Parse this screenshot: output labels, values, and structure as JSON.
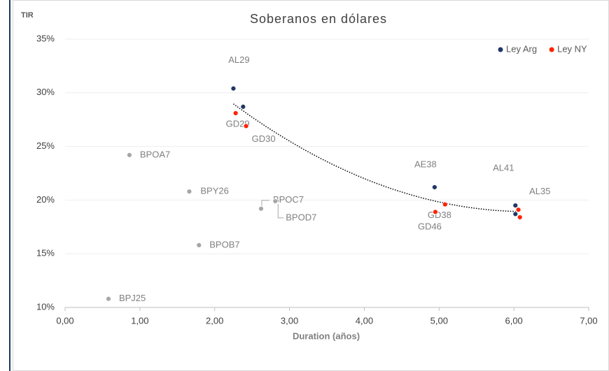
{
  "chart_data": {
    "type": "scatter",
    "title": "Soberanos en dólares",
    "y_label": "TIR",
    "x_label": "Duration (años)",
    "xlim": [
      0,
      7
    ],
    "ylim": [
      10,
      35
    ],
    "xticks": [
      {
        "value": 0,
        "label": "0,00"
      },
      {
        "value": 1,
        "label": "1,00"
      },
      {
        "value": 2,
        "label": "2,00"
      },
      {
        "value": 3,
        "label": "3,00"
      },
      {
        "value": 4,
        "label": "4,00"
      },
      {
        "value": 5,
        "label": "5,00"
      },
      {
        "value": 6,
        "label": "6,00"
      },
      {
        "value": 7,
        "label": "7,00"
      }
    ],
    "yticks": [
      {
        "value": 10,
        "label": "10%"
      },
      {
        "value": 15,
        "label": "15%"
      },
      {
        "value": 20,
        "label": "20%"
      },
      {
        "value": 25,
        "label": "25%"
      },
      {
        "value": 30,
        "label": "30%"
      },
      {
        "value": 35,
        "label": "35%"
      }
    ],
    "grid": true,
    "legend": "top-right",
    "trendline": true,
    "series": [
      {
        "name": "Ley Arg",
        "color": "#1f3864",
        "x": [
          2.25,
          2.38,
          4.94,
          6.02,
          6.02
        ],
        "values": [
          30.4,
          28.7,
          21.2,
          19.5,
          18.7
        ],
        "labels": [
          "AL29",
          null,
          "AE38",
          "AL41",
          "AL35"
        ]
      },
      {
        "name": "Ley NY",
        "color": "#ff2200",
        "x": [
          2.28,
          2.42,
          5.08,
          4.95,
          6.06,
          6.08
        ],
        "values": [
          28.1,
          26.9,
          19.6,
          18.9,
          19.1,
          18.4
        ],
        "labels": [
          "GD29",
          "GD30",
          "GD38",
          "GD46",
          null,
          null
        ]
      },
      {
        "color": "#a6a6a6",
        "x": [
          0.86,
          1.66,
          2.62,
          2.81,
          1.79,
          0.58
        ],
        "values": [
          24.2,
          20.8,
          19.2,
          19.9,
          15.8,
          10.8
        ],
        "labels": [
          "BPOA7",
          "BPY26",
          "BPOC7",
          "BPOD7",
          "BPOB7",
          "BPJ25"
        ]
      }
    ]
  }
}
